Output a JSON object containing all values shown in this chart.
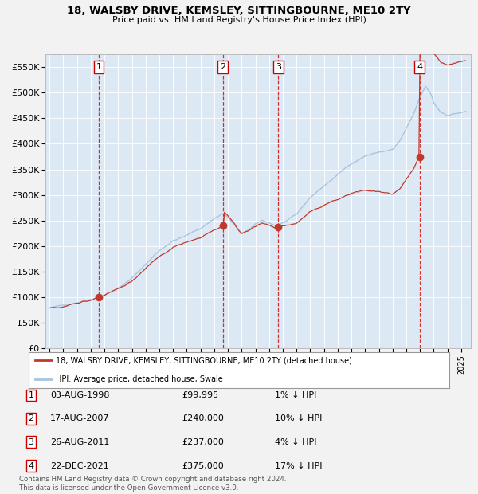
{
  "title": "18, WALSBY DRIVE, KEMSLEY, SITTINGBOURNE, ME10 2TY",
  "subtitle": "Price paid vs. HM Land Registry's House Price Index (HPI)",
  "sale_prices": [
    99995,
    240000,
    237000,
    375000
  ],
  "sale_labels": [
    "1",
    "2",
    "3",
    "4"
  ],
  "legend_line1": "18, WALSBY DRIVE, KEMSLEY, SITTINGBOURNE, ME10 2TY (detached house)",
  "legend_line2": "HPI: Average price, detached house, Swale",
  "table_rows": [
    [
      "1",
      "03-AUG-1998",
      "£99,995",
      "1% ↓ HPI"
    ],
    [
      "2",
      "17-AUG-2007",
      "£240,000",
      "10% ↓ HPI"
    ],
    [
      "3",
      "26-AUG-2011",
      "£237,000",
      "4% ↓ HPI"
    ],
    [
      "4",
      "22-DEC-2021",
      "£375,000",
      "17% ↓ HPI"
    ]
  ],
  "footer": "Contains HM Land Registry data © Crown copyright and database right 2024.\nThis data is licensed under the Open Government Licence v3.0.",
  "hpi_color": "#a8c4e0",
  "price_color": "#c0392b",
  "marker_color": "#c0392b",
  "bg_color": "#dce9f5",
  "fig_bg": "#f2f2f2",
  "grid_color": "#ffffff",
  "ylim": [
    0,
    575000
  ],
  "yticks": [
    0,
    50000,
    100000,
    150000,
    200000,
    250000,
    300000,
    350000,
    400000,
    450000,
    500000,
    550000
  ],
  "xlim_start": 1994.7,
  "xlim_end": 2025.7,
  "sale_floats": [
    1998.583,
    2007.625,
    2011.667,
    2021.958
  ]
}
